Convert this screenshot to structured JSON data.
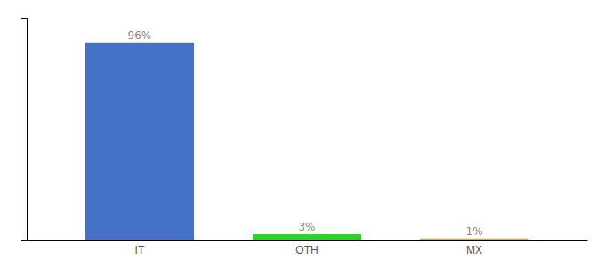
{
  "chart_data": {
    "type": "bar",
    "categories": [
      "IT",
      "OTH",
      "MX"
    ],
    "values": [
      96,
      3,
      1
    ],
    "value_labels": [
      "96%",
      "3%",
      "1%"
    ],
    "colors": [
      "#4472c4",
      "#33cc33",
      "#f0a030"
    ],
    "ylim": [
      0,
      108
    ],
    "yticks": [],
    "grid": false,
    "data_labels": true,
    "tick_labels": "x"
  }
}
